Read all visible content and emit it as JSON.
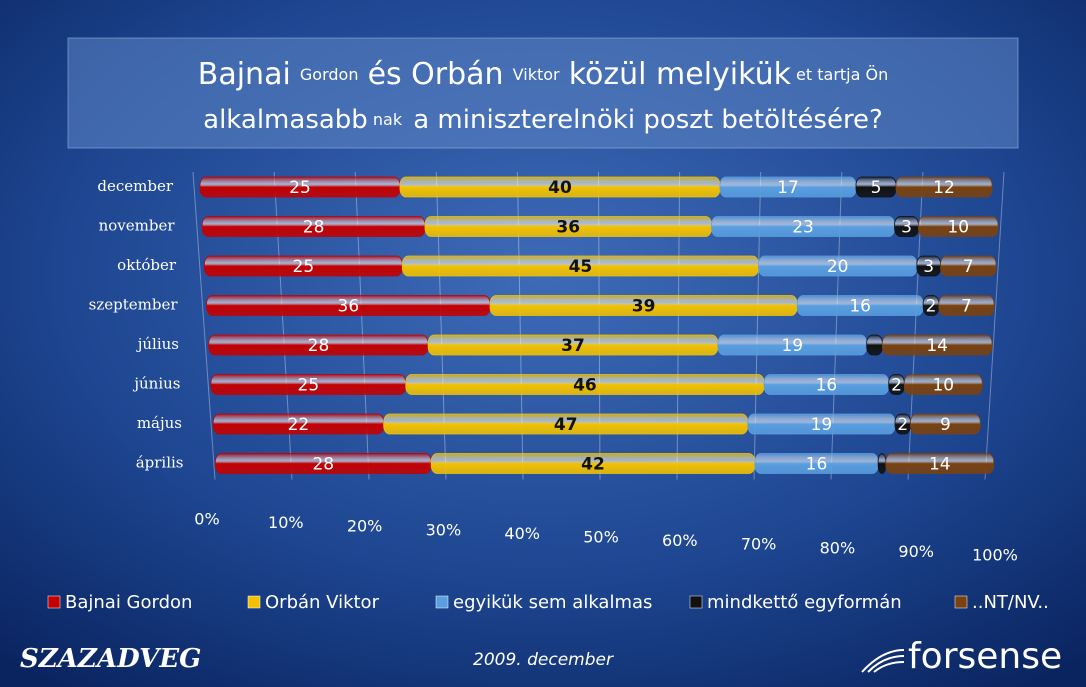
{
  "chart_data": {
    "type": "stacked-bar-horizontal",
    "title_lines": [
      [
        "Bajnai",
        "Gordon",
        "és Orbán",
        "Viktor",
        "közül melyikük",
        "et tartja Ön"
      ],
      [
        "alkalmasabb",
        "nak",
        "a miniszterelnöki poszt betöltésére?"
      ]
    ],
    "categories": [
      "december",
      "november",
      "október",
      "szeptember",
      "július",
      "június",
      "május",
      "április"
    ],
    "series": [
      {
        "name": "Bajnai Gordon",
        "color": "#c40000",
        "label_color": "#ffffff",
        "values": [
          25,
          28,
          25,
          36,
          28,
          25,
          22,
          28
        ]
      },
      {
        "name": "Orbán Viktor",
        "color": "#f2c200",
        "label_color": "#111111",
        "values": [
          40,
          36,
          45,
          39,
          37,
          46,
          47,
          42
        ]
      },
      {
        "name": "egyikük sem alkalmas",
        "color": "#5a9fe0",
        "label_color": "#ffffff",
        "values": [
          17,
          23,
          20,
          16,
          19,
          16,
          19,
          16
        ]
      },
      {
        "name": "mindkettő egyformán",
        "color": "#111111",
        "label_color": "#ffffff",
        "values": [
          5,
          3,
          3,
          2,
          2,
          2,
          2,
          1
        ],
        "value_labels": [
          "5",
          "3",
          "3",
          "2",
          null,
          "2",
          "2",
          null
        ]
      },
      {
        "name": "..NT/NV..",
        "color": "#7a4210",
        "label_color": "#ffffff",
        "values": [
          12,
          10,
          7,
          7,
          14,
          10,
          9,
          14
        ]
      }
    ],
    "xlim": [
      0,
      100
    ],
    "xticks": [
      {
        "value": 0,
        "label": "0%"
      },
      {
        "value": 10,
        "label": "10%"
      },
      {
        "value": 20,
        "label": "20%"
      },
      {
        "value": 30,
        "label": "30%"
      },
      {
        "value": 40,
        "label": "40%"
      },
      {
        "value": 50,
        "label": "50%"
      },
      {
        "value": 60,
        "label": "60%"
      },
      {
        "value": 70,
        "label": "70%"
      },
      {
        "value": 80,
        "label": "80%"
      },
      {
        "value": 90,
        "label": "90%"
      },
      {
        "value": 100,
        "label": "100%"
      }
    ],
    "grid": true
  },
  "footer": {
    "left_logo": "SZAZADVEG",
    "date": "2009. december",
    "right_logo": "forsense"
  }
}
